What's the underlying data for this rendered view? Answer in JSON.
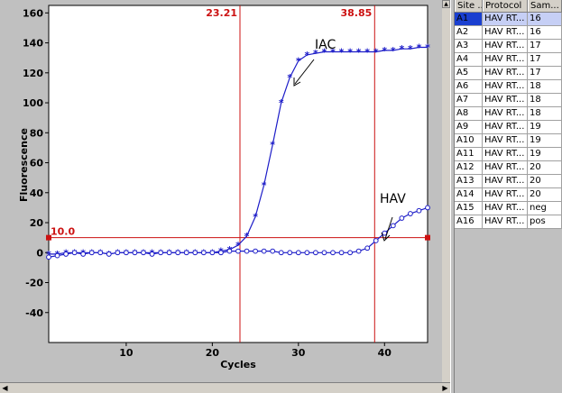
{
  "chart_data": {
    "type": "line",
    "xlabel": "Cycles",
    "ylabel": "Fluorescence",
    "xlim": [
      1,
      45
    ],
    "ylim": [
      -60,
      165
    ],
    "x_ticks": [
      "10",
      "20",
      "30",
      "40"
    ],
    "x_tick_values": [
      10,
      20,
      30,
      40
    ],
    "y_ticks": [
      "160",
      "140",
      "120",
      "100",
      "80",
      "60",
      "40",
      "20",
      "0",
      "-20",
      "-40"
    ],
    "y_tick_values": [
      160,
      140,
      120,
      100,
      80,
      60,
      40,
      20,
      0,
      -20,
      -40
    ],
    "threshold": {
      "value": 10,
      "label": "10.0"
    },
    "markers": [
      {
        "x": 23.21,
        "label": "23.21"
      },
      {
        "x": 38.85,
        "label": "38.85"
      }
    ],
    "annotations": [
      {
        "text": "IAC",
        "x": 30,
        "y": 123
      },
      {
        "text": "HAV",
        "x": 39.5,
        "y": 14
      }
    ],
    "series": [
      {
        "marker": "star",
        "x": [
          1,
          2,
          3,
          4,
          5,
          6,
          7,
          8,
          9,
          10,
          11,
          12,
          13,
          14,
          15,
          16,
          17,
          18,
          19,
          20,
          21,
          22,
          23,
          24,
          25,
          26,
          27,
          28,
          29,
          30,
          31,
          32,
          33,
          34,
          35,
          36,
          37,
          38,
          39,
          40,
          41,
          42,
          43,
          44,
          45
        ],
        "values": [
          -1,
          -1,
          0,
          0,
          0,
          0,
          0,
          -1,
          0,
          0,
          0,
          0,
          0,
          0,
          0,
          0,
          0,
          0,
          0,
          0,
          1,
          2,
          5,
          11,
          24,
          45,
          72,
          100,
          117,
          128,
          132,
          133,
          134,
          134,
          134,
          134,
          134,
          134,
          134,
          135,
          135,
          136,
          136,
          137,
          137
        ]
      },
      {
        "marker": "circle",
        "x": [
          1,
          2,
          3,
          4,
          5,
          6,
          7,
          8,
          9,
          10,
          11,
          12,
          13,
          14,
          15,
          16,
          17,
          18,
          19,
          20,
          21,
          22,
          23,
          24,
          25,
          26,
          27,
          28,
          29,
          30,
          31,
          32,
          33,
          34,
          35,
          36,
          37,
          38,
          39,
          40,
          41,
          42,
          43,
          44,
          45
        ],
        "values": [
          -3,
          -2,
          -1,
          0,
          -1,
          0,
          0,
          -1,
          0,
          0,
          0,
          0,
          -1,
          0,
          0,
          0,
          0,
          0,
          0,
          0,
          0,
          1,
          1,
          1,
          1,
          1,
          1,
          0,
          0,
          0,
          0,
          0,
          0,
          0,
          0,
          0,
          1,
          3,
          8,
          13,
          18,
          23,
          26,
          28,
          30
        ]
      }
    ]
  },
  "table": {
    "headers": {
      "site": "Site ...",
      "protocol": "Protocol",
      "sample": "Sam..."
    },
    "rows": [
      {
        "site": "A1",
        "protocol": "HAV RT...",
        "sample": "16"
      },
      {
        "site": "A2",
        "protocol": "HAV RT...",
        "sample": "16"
      },
      {
        "site": "A3",
        "protocol": "HAV RT...",
        "sample": "17"
      },
      {
        "site": "A4",
        "protocol": "HAV RT...",
        "sample": "17"
      },
      {
        "site": "A5",
        "protocol": "HAV RT...",
        "sample": "17"
      },
      {
        "site": "A6",
        "protocol": "HAV RT...",
        "sample": "18"
      },
      {
        "site": "A7",
        "protocol": "HAV RT...",
        "sample": "18"
      },
      {
        "site": "A8",
        "protocol": "HAV RT...",
        "sample": "18"
      },
      {
        "site": "A9",
        "protocol": "HAV RT...",
        "sample": "19"
      },
      {
        "site": "A10",
        "protocol": "HAV RT...",
        "sample": "19"
      },
      {
        "site": "A11",
        "protocol": "HAV RT...",
        "sample": "19"
      },
      {
        "site": "A12",
        "protocol": "HAV RT...",
        "sample": "20"
      },
      {
        "site": "A13",
        "protocol": "HAV RT...",
        "sample": "20"
      },
      {
        "site": "A14",
        "protocol": "HAV RT...",
        "sample": "20"
      },
      {
        "site": "A15",
        "protocol": "HAV RT...",
        "sample": "neg"
      },
      {
        "site": "A16",
        "protocol": "HAV RT...",
        "sample": "pos"
      }
    ]
  },
  "colors": {
    "series": "#1c1cc8",
    "threshold": "#cc1111",
    "selection": "#1a3fd0"
  }
}
